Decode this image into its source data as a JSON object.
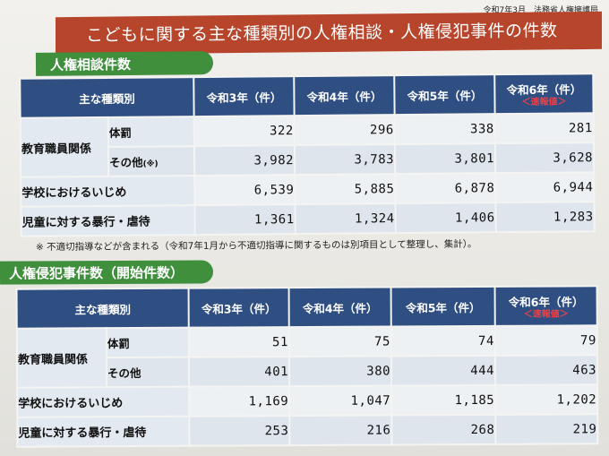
{
  "header": {
    "date_org": "令和7年3月　法務省人権擁護局",
    "title": "こどもに関する主な種類別の人権相談・人権侵犯事件の件数"
  },
  "consultation": {
    "heading": "人権相談件数",
    "columns": {
      "category": "主な種類別",
      "r3": "令和3年（件）",
      "r4": "令和4年（件）",
      "r5": "令和5年（件）",
      "r6": "令和6年（件）",
      "r6_note": "＜速報値＞"
    },
    "group_label": "教育職員関係",
    "rows": [
      {
        "label": "体罰",
        "label_suffix": "",
        "r3": "322",
        "r4": "296",
        "r5": "338",
        "r6": "281"
      },
      {
        "label": "その他",
        "label_suffix": "(※)",
        "r3": "3,982",
        "r4": "3,783",
        "r5": "3,801",
        "r6": "3,628"
      },
      {
        "label": "学校におけるいじめ",
        "label_suffix": "",
        "r3": "6,539",
        "r4": "5,885",
        "r5": "6,878",
        "r6": "6,944"
      },
      {
        "label": "児童に対する暴行・虐待",
        "label_suffix": "",
        "r3": "1,361",
        "r4": "1,324",
        "r5": "1,406",
        "r6": "1,283"
      }
    ],
    "note": "※ 不適切指導などが含まれる（令和7年1月から不適切指導に関するものは別項目として整理し、集計）。"
  },
  "infringement": {
    "heading": "人権侵犯事件数（開始件数）",
    "columns": {
      "category": "主な種類別",
      "r3": "令和3年（件）",
      "r4": "令和4年（件）",
      "r5": "令和5年（件）",
      "r6": "令和6年（件）",
      "r6_note": "＜速報値＞"
    },
    "group_label": "教育職員関係",
    "rows": [
      {
        "label": "体罰",
        "r3": "51",
        "r4": "75",
        "r5": "74",
        "r6": "79"
      },
      {
        "label": "その他",
        "r3": "401",
        "r4": "380",
        "r5": "444",
        "r6": "463"
      },
      {
        "label": "学校におけるいじめ",
        "r3": "1,169",
        "r4": "1,047",
        "r5": "1,185",
        "r6": "1,202"
      },
      {
        "label": "児童に対する暴行・虐待",
        "r3": "253",
        "r4": "216",
        "r5": "268",
        "r6": "219"
      }
    ]
  }
}
